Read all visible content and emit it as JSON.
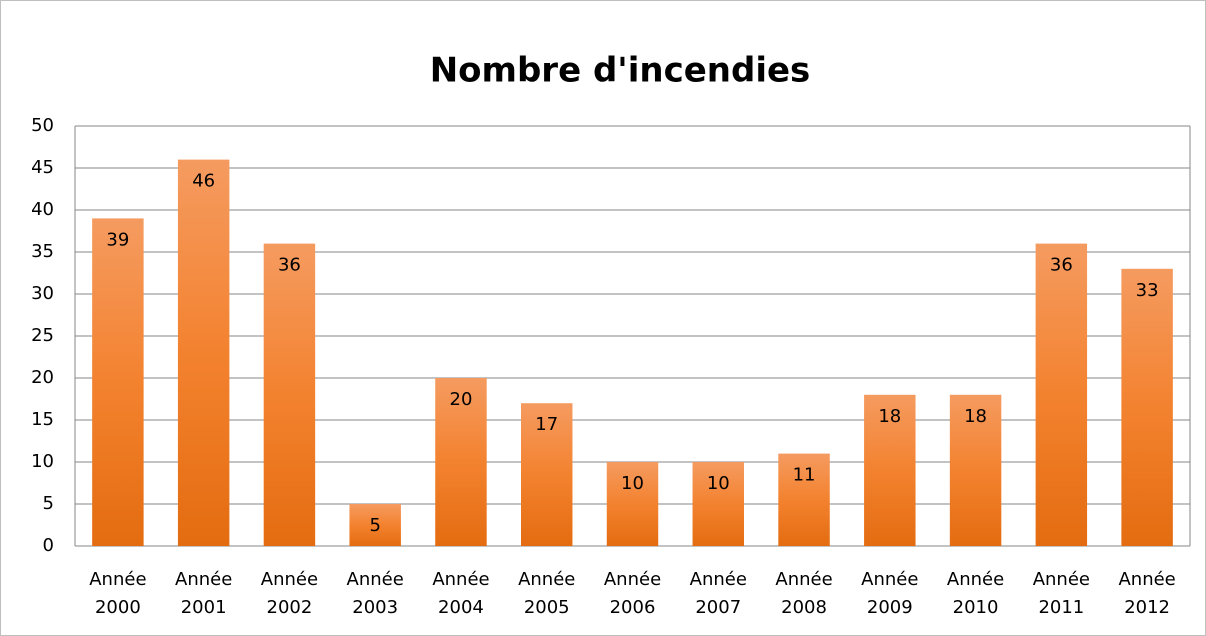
{
  "chart_data": {
    "type": "bar",
    "title": "Nombre d'incendies",
    "categories": [
      "Année 2000",
      "Année 2001",
      "Année 2002",
      "Année 2003",
      "Année 2004",
      "Année 2005",
      "Année 2006",
      "Année 2007",
      "Année 2008",
      "Année 2009",
      "Année 2010",
      "Année 2011",
      "Année 2012"
    ],
    "values": [
      39,
      46,
      36,
      5,
      20,
      17,
      10,
      10,
      11,
      18,
      18,
      36,
      33
    ],
    "color": "#f07f2c",
    "ylim": [
      0,
      50
    ],
    "yticks": [
      0,
      5,
      10,
      15,
      20,
      25,
      30,
      35,
      40,
      45,
      50
    ],
    "grid": true
  }
}
